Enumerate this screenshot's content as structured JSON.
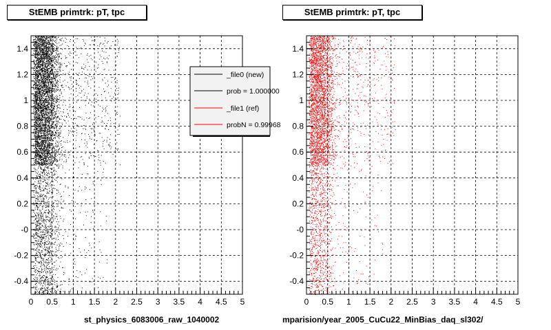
{
  "chart_data": [
    {
      "type": "scatter",
      "title": "StEMB primtrk: pT, tpc",
      "xlabel": "st_physics_6083006_raw_1040002",
      "ylabel": "",
      "xlim": [
        0,
        5
      ],
      "ylim": [
        -0.5,
        1.5
      ],
      "x_ticks": [
        "0",
        "0.5",
        "1",
        "1.5",
        "2",
        "2.5",
        "3",
        "3.5",
        "4",
        "4.5",
        "5"
      ],
      "y_ticks": [
        "-0.4",
        "-0.2",
        "-0",
        "0.2",
        "0.4",
        "0.6",
        "0.8",
        "1",
        "1.2",
        "1.4"
      ],
      "grid": true,
      "marker_color": "#000000",
      "legend_placement": "top-right",
      "legend": [
        {
          "label": "_file0 (new)",
          "color": "#000000"
        },
        {
          "label": "prob = 1.000000",
          "color": "#000000"
        },
        {
          "label": "_file1 (ref)",
          "color": "#ff0000"
        },
        {
          "label": "probN = 0.99968",
          "color": "#ff0000"
        }
      ],
      "density_profile": {
        "x_peak": 0.3,
        "dense_band_y": [
          0.5,
          1.5
        ],
        "sparse_band_y": [
          -0.5,
          0.5
        ],
        "x_extent": 2.0
      }
    },
    {
      "type": "scatter",
      "title": "StEMB primtrk: pT, tpc",
      "xlabel": "mparision/year_2005_CuCu22_MinBias_daq_sl302/",
      "ylabel": "",
      "xlim": [
        0,
        5
      ],
      "ylim": [
        -0.5,
        1.5
      ],
      "x_ticks": [
        "0",
        "0.5",
        "1",
        "1.5",
        "2",
        "2.5",
        "3",
        "3.5",
        "4",
        "4.5",
        "5"
      ],
      "y_ticks": [
        "-0.4",
        "-0.2",
        "-0",
        "0.2",
        "0.4",
        "0.6",
        "0.8",
        "1",
        "1.2",
        "1.4"
      ],
      "grid": true,
      "marker_color": "#ff0000",
      "density_profile": {
        "x_peak": 0.3,
        "dense_band_y": [
          0.5,
          1.5
        ],
        "sparse_band_y": [
          -0.5,
          0.5
        ],
        "x_extent": 2.0
      }
    }
  ]
}
